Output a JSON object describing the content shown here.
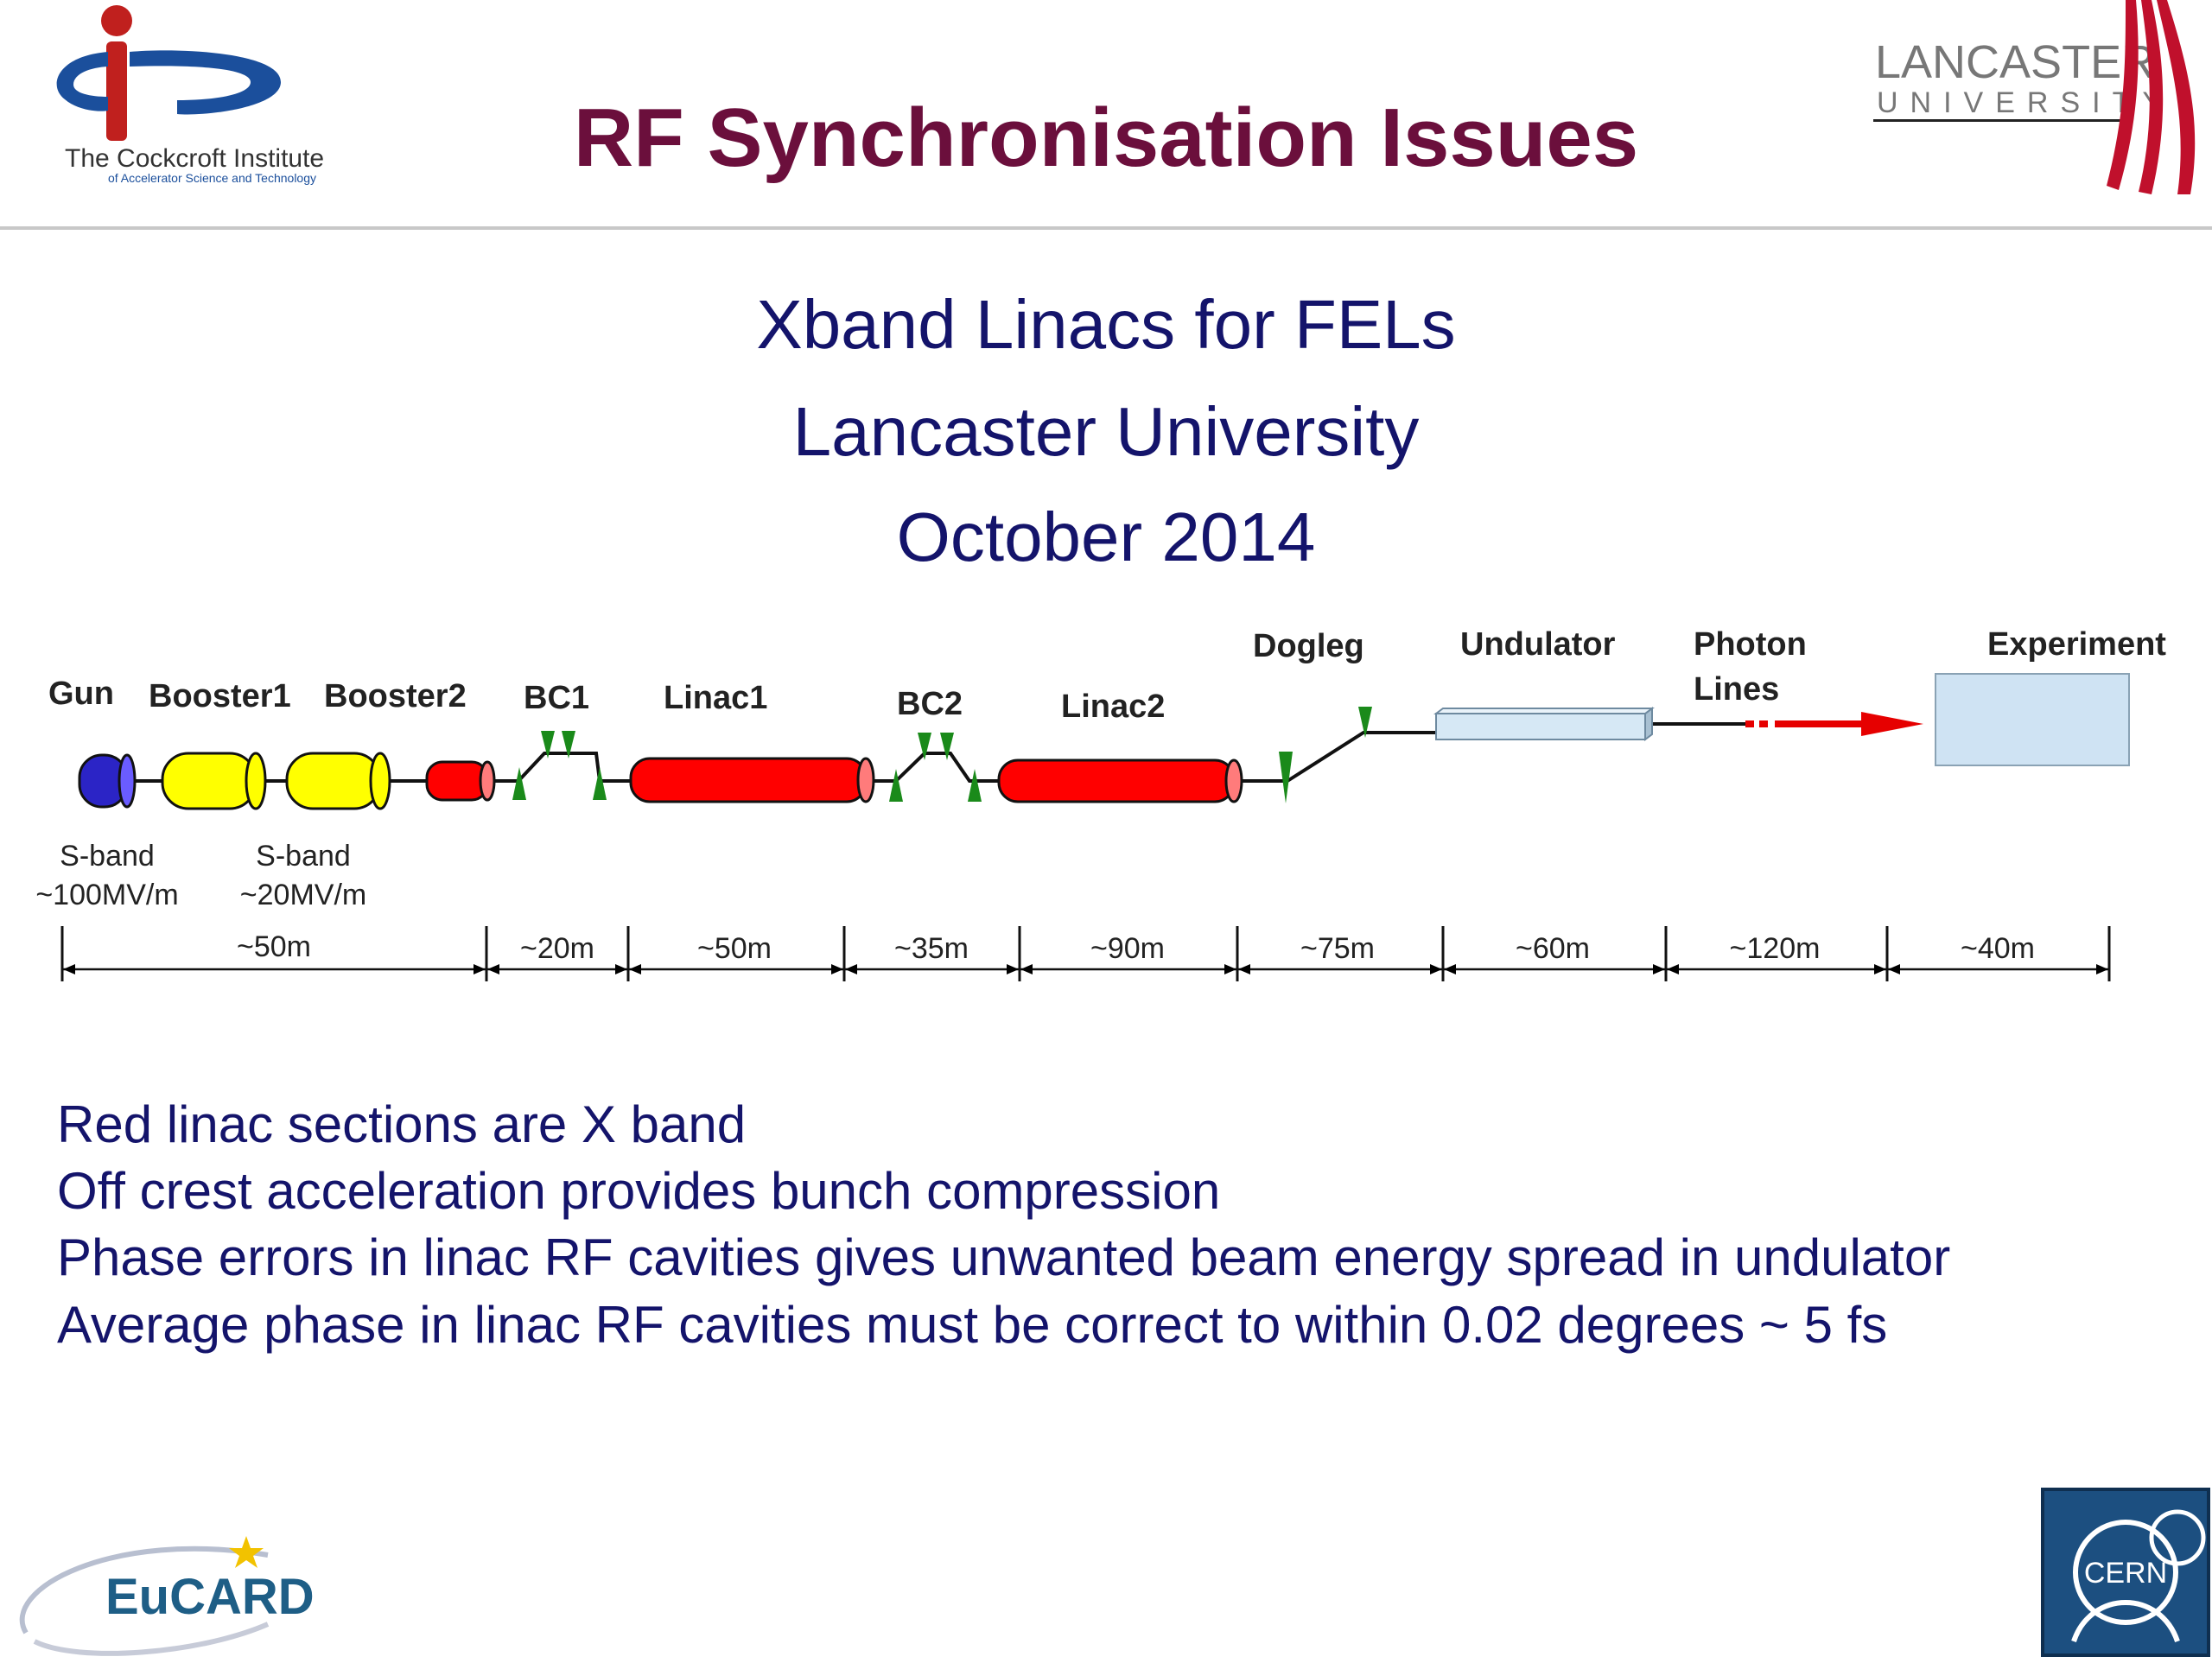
{
  "header": {
    "title": "RF Synchronisation Issues",
    "cockcroft_logo": {
      "name": "The Cockcroft Institute",
      "tagline": "of Accelerator Science and Technology",
      "color_red": "#c0201e",
      "color_blue": "#1b4f9c"
    },
    "lancaster_logo": {
      "line1": "LANCASTER",
      "line2": "UNIVERSITY",
      "color": "#c0102c"
    }
  },
  "subtitle": {
    "line1": "Xband Linacs for FELs",
    "line2": "Lancaster University",
    "line3": "October 2014"
  },
  "diagram": {
    "labels": {
      "gun": "Gun",
      "booster1": "Booster1",
      "booster2": "Booster2",
      "bc1": "BC1",
      "linac1": "Linac1",
      "bc2": "BC2",
      "linac2": "Linac2",
      "dogleg": "Dogleg",
      "undulator": "Undulator",
      "photon": "Photon",
      "lines": "Lines",
      "experiment": "Experiment"
    },
    "annotations": {
      "gun_band": "S-band",
      "gun_gradient": "~100MV/m",
      "booster_band": "S-band",
      "booster_gradient": "~20MV/m"
    },
    "distances": [
      "~50m",
      "~20m",
      "~50m",
      "~35m",
      "~90m",
      "~75m",
      "~60m",
      "~120m",
      "~40m"
    ],
    "colors": {
      "gun": "#2b24c6",
      "booster": "#ffff00",
      "xband": "#ff0000",
      "magnet": "#1a8a1a",
      "undulator": "#d6e8f5",
      "experiment": "#cfe3f3",
      "photon_arrow": "#e60000"
    }
  },
  "bullets": [
    "Red linac sections are X band",
    "Off crest acceleration provides bunch compression",
    "Phase errors in linac RF cavities gives unwanted beam energy spread in undulator",
    "Average phase in linac RF cavities must be correct to within 0.02 degrees ~ 5 fs"
  ],
  "footer": {
    "eucard_logo": "EuCARD",
    "cern_logo": "CERN"
  }
}
